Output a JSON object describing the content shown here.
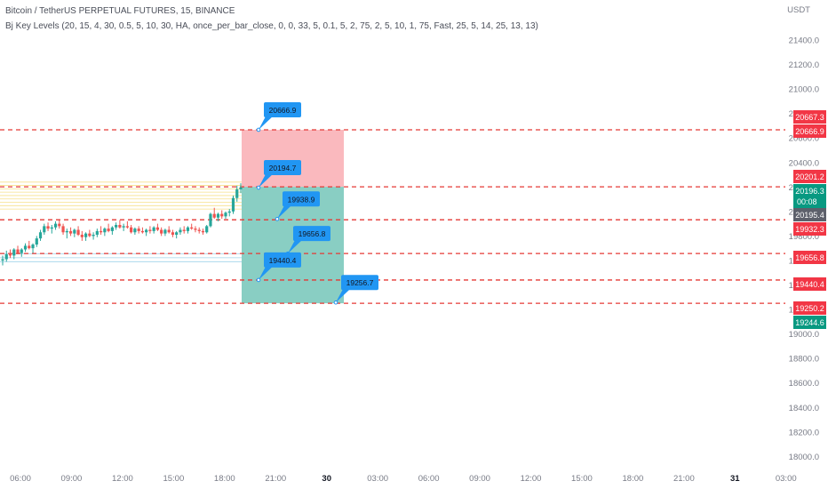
{
  "header": {
    "symbol_line": "Bitcoin / TetherUS PERPETUAL FUTURES, 15, BINANCE",
    "indicator_line": "Bj Key Levels (20, 15, 4, 30, 0.5, 5, 10, 30, HA, once_per_bar_close, 0, 0, 33, 5, 0.1, 5, 2, 75, 2, 5, 10, 1, 75, Fast, 25, 5, 14, 25, 13, 13)"
  },
  "colors": {
    "background": "#ffffff",
    "up": "#26a69a",
    "down": "#ef5350",
    "level_line": "#e53935",
    "red_badge": "#f23645",
    "green_badge": "#089981",
    "gray_badge": "#5d606b",
    "callout": "#2196f3",
    "loss_zone": "rgba(242,54,69,0.35)",
    "profit_zone": "rgba(8,153,129,0.48)",
    "axis_text": "#787b86"
  },
  "chart_data": {
    "type": "candlestick",
    "currency_label": "USDT",
    "y_axis_ticks": [
      21400.0,
      21200.0,
      21000.0,
      20800.0,
      20600.0,
      20400.0,
      20200.0,
      20000.0,
      19800.0,
      19600.0,
      19400.0,
      19200.0,
      19000.0,
      18800.0,
      18600.0,
      18400.0,
      18200.0,
      18000.0
    ],
    "ylim": [
      18000,
      21600
    ],
    "x_axis_ticks": [
      "06:00",
      "09:00",
      "12:00",
      "15:00",
      "18:00",
      "21:00",
      "30",
      "03:00",
      "06:00",
      "09:00",
      "12:00",
      "15:00",
      "18:00",
      "21:00",
      "31",
      "03:00"
    ],
    "horizontal_levels": [
      20666.9,
      20201.2,
      19932.3,
      19656.8,
      19440.4,
      19250.2
    ],
    "price_badges": [
      {
        "text": "20667.3",
        "value": 20667.3,
        "color": "red"
      },
      {
        "text": "20666.9",
        "value": 20666.9,
        "color": "red"
      },
      {
        "text": "20201.2",
        "value": 20201.2,
        "color": "red"
      },
      {
        "text": "20196.3",
        "value": 20196.3,
        "color": "green",
        "countdown": "00:08"
      },
      {
        "text": "20195.4",
        "value": 20195.4,
        "color": "gray"
      },
      {
        "text": "19932.3",
        "value": 19932.3,
        "color": "red"
      },
      {
        "text": "19656.8",
        "value": 19656.8,
        "color": "red"
      },
      {
        "text": "19440.4",
        "value": 19440.4,
        "color": "red"
      },
      {
        "text": "19250.2",
        "value": 19250.2,
        "color": "red"
      },
      {
        "text": "19244.6",
        "value": 19244.6,
        "color": "green"
      }
    ],
    "callouts": [
      {
        "text": "20666.9",
        "value": 20666.9
      },
      {
        "text": "20194.7",
        "value": 20194.7
      },
      {
        "text": "19938.9",
        "value": 19938.9
      },
      {
        "text": "19656.8",
        "value": 19656.8
      },
      {
        "text": "19440.4",
        "value": 19440.4
      },
      {
        "text": "19256.7",
        "value": 19256.7
      }
    ],
    "position_box": {
      "entry": 20201.2,
      "stop": 20666.9,
      "target": 19250.2
    },
    "yellow_zone": [
      20020,
      20240
    ],
    "blue_zone": [
      19590,
      19655
    ],
    "candles": [
      [
        19600,
        19640,
        19560,
        19610
      ],
      [
        19610,
        19680,
        19590,
        19650
      ],
      [
        19650,
        19690,
        19620,
        19640
      ],
      [
        19640,
        19700,
        19610,
        19690
      ],
      [
        19690,
        19720,
        19650,
        19660
      ],
      [
        19660,
        19700,
        19630,
        19690
      ],
      [
        19690,
        19740,
        19670,
        19720
      ],
      [
        19720,
        19760,
        19690,
        19700
      ],
      [
        19700,
        19740,
        19660,
        19730
      ],
      [
        19730,
        19800,
        19710,
        19780
      ],
      [
        19780,
        19850,
        19760,
        19830
      ],
      [
        19830,
        19900,
        19810,
        19880
      ],
      [
        19880,
        19910,
        19840,
        19860
      ],
      [
        19860,
        19890,
        19820,
        19870
      ],
      [
        19870,
        19920,
        19850,
        19900
      ],
      [
        19900,
        19930,
        19860,
        19880
      ],
      [
        19880,
        19900,
        19810,
        19830
      ],
      [
        19830,
        19860,
        19780,
        19840
      ],
      [
        19840,
        19870,
        19800,
        19820
      ],
      [
        19820,
        19860,
        19790,
        19850
      ],
      [
        19850,
        19880,
        19800,
        19810
      ],
      [
        19810,
        19840,
        19760,
        19790
      ],
      [
        19790,
        19830,
        19760,
        19820
      ],
      [
        19820,
        19850,
        19790,
        19800
      ],
      [
        19800,
        19830,
        19770,
        19810
      ],
      [
        19810,
        19860,
        19790,
        19840
      ],
      [
        19840,
        19880,
        19810,
        19830
      ],
      [
        19830,
        19870,
        19800,
        19860
      ],
      [
        19860,
        19900,
        19830,
        19840
      ],
      [
        19840,
        19880,
        19810,
        19870
      ],
      [
        19870,
        19910,
        19850,
        19890
      ],
      [
        19890,
        19930,
        19860,
        19870
      ],
      [
        19870,
        19900,
        19840,
        19880
      ],
      [
        19880,
        19920,
        19860,
        19870
      ],
      [
        19870,
        19890,
        19820,
        19830
      ],
      [
        19830,
        19870,
        19810,
        19860
      ],
      [
        19860,
        19880,
        19820,
        19840
      ],
      [
        19840,
        19870,
        19820,
        19830
      ],
      [
        19830,
        19860,
        19800,
        19850
      ],
      [
        19850,
        19880,
        19820,
        19840
      ],
      [
        19840,
        19880,
        19820,
        19870
      ],
      [
        19870,
        19900,
        19840,
        19850
      ],
      [
        19850,
        19870,
        19800,
        19820
      ],
      [
        19820,
        19860,
        19800,
        19850
      ],
      [
        19850,
        19880,
        19820,
        19830
      ],
      [
        19830,
        19850,
        19790,
        19810
      ],
      [
        19810,
        19840,
        19780,
        19830
      ],
      [
        19830,
        19870,
        19810,
        19850
      ],
      [
        19850,
        19880,
        19820,
        19840
      ],
      [
        19840,
        19880,
        19820,
        19870
      ],
      [
        19870,
        19900,
        19850,
        19860
      ],
      [
        19860,
        19880,
        19830,
        19850
      ],
      [
        19850,
        19870,
        19820,
        19840
      ],
      [
        19840,
        19860,
        19810,
        19830
      ],
      [
        19830,
        19890,
        19820,
        19880
      ],
      [
        19880,
        19990,
        19870,
        19980
      ],
      [
        19980,
        20030,
        19940,
        19950
      ],
      [
        19950,
        19990,
        19920,
        19980
      ],
      [
        19980,
        20010,
        19940,
        19960
      ],
      [
        19960,
        20000,
        19940,
        19990
      ],
      [
        19990,
        20020,
        19960,
        20000
      ],
      [
        20000,
        20130,
        19980,
        20110
      ],
      [
        20110,
        20210,
        20080,
        20180
      ],
      [
        20180,
        20230,
        20150,
        20196.3
      ]
    ]
  }
}
